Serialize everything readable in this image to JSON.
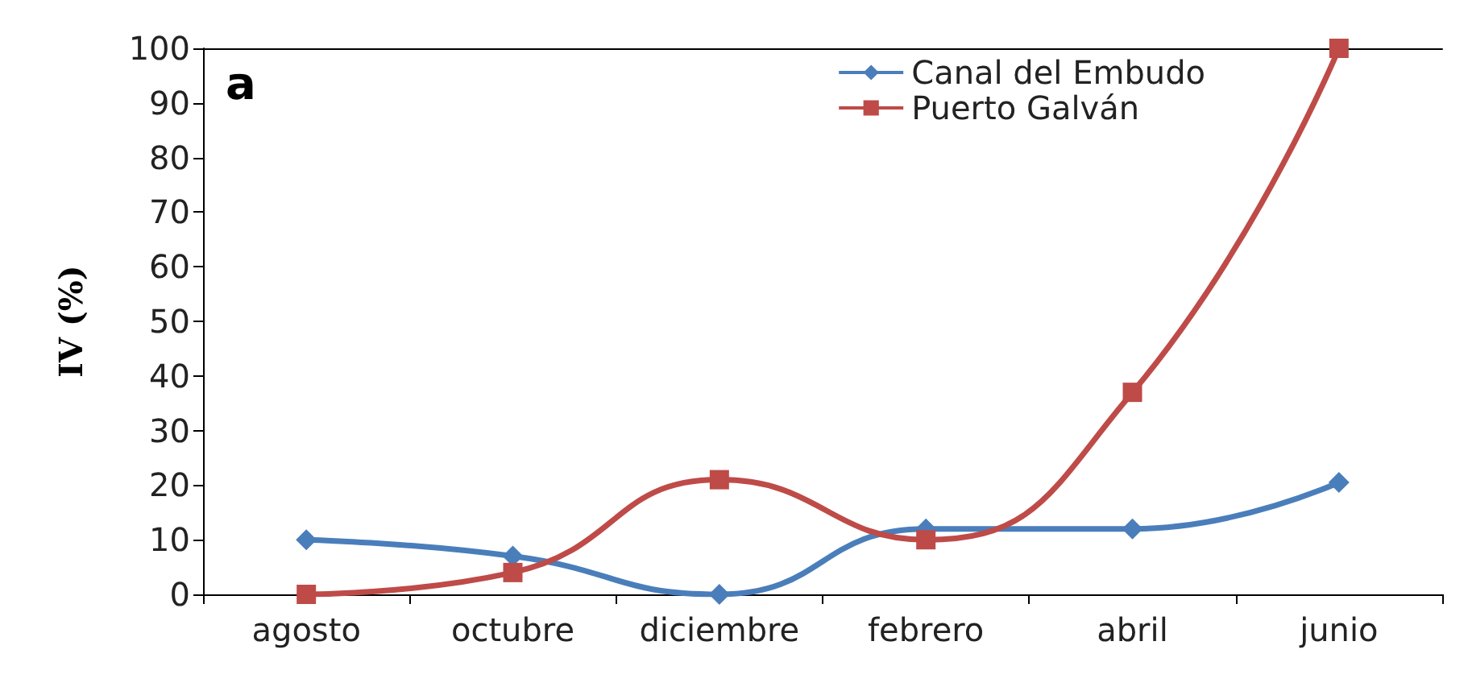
{
  "chart_data": {
    "type": "line",
    "ylabel": "IV (%)",
    "annotations": [
      "a"
    ],
    "categories": [
      "agosto",
      "octubre",
      "diciembre",
      "febrero",
      "abril",
      "junio"
    ],
    "series": [
      {
        "name": "Canal del Embudo",
        "color": "#4a7ebb",
        "marker": "diamond",
        "values": [
          10,
          7,
          0,
          12,
          12,
          20.5
        ]
      },
      {
        "name": "Puerto Galván",
        "color": "#be4b48",
        "marker": "square",
        "values": [
          0,
          4,
          21,
          10,
          37,
          100
        ]
      }
    ],
    "ylim": [
      0,
      100
    ],
    "yticks": [
      0,
      10,
      20,
      30,
      40,
      50,
      60,
      70,
      80,
      90,
      100
    ],
    "grid": false,
    "legend": "top right",
    "line_style": "solid"
  }
}
